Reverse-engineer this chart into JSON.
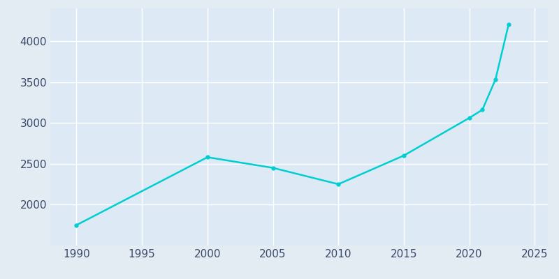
{
  "years": [
    1990,
    2000,
    2005,
    2010,
    2015,
    2020,
    2021,
    2022,
    2023
  ],
  "population": [
    1750,
    2580,
    2450,
    2250,
    2600,
    3060,
    3160,
    3530,
    4200
  ],
  "line_color": "#00CED1",
  "bg_color": "#E3EBF3",
  "plot_bg_color": "#DDEAF5",
  "grid_color": "#FFFFFF",
  "tick_color": "#3B4A6B",
  "xlim": [
    1988,
    2026
  ],
  "ylim": [
    1500,
    4400
  ],
  "xticks": [
    1990,
    1995,
    2000,
    2005,
    2010,
    2015,
    2020,
    2025
  ],
  "yticks": [
    2000,
    2500,
    3000,
    3500,
    4000
  ],
  "line_width": 1.8,
  "marker": "o",
  "marker_size": 3.5,
  "tick_fontsize": 11
}
